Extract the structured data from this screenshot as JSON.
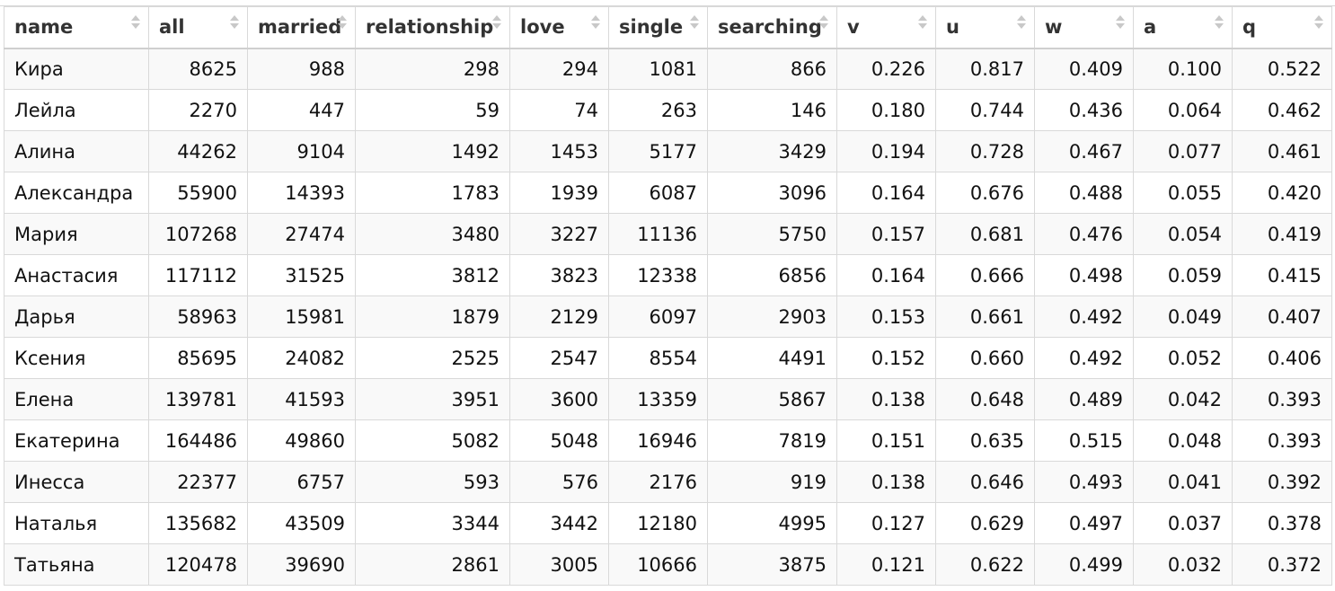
{
  "table": {
    "columns": [
      "name",
      "all",
      "married",
      "relationship",
      "love",
      "single",
      "searching",
      "v",
      "u",
      "w",
      "a",
      "q"
    ],
    "rows": [
      [
        "Кира",
        "8625",
        "988",
        "298",
        "294",
        "1081",
        "866",
        "0.226",
        "0.817",
        "0.409",
        "0.100",
        "0.522"
      ],
      [
        "Лейла",
        "2270",
        "447",
        "59",
        "74",
        "263",
        "146",
        "0.180",
        "0.744",
        "0.436",
        "0.064",
        "0.462"
      ],
      [
        "Алина",
        "44262",
        "9104",
        "1492",
        "1453",
        "5177",
        "3429",
        "0.194",
        "0.728",
        "0.467",
        "0.077",
        "0.461"
      ],
      [
        "Александра",
        "55900",
        "14393",
        "1783",
        "1939",
        "6087",
        "3096",
        "0.164",
        "0.676",
        "0.488",
        "0.055",
        "0.420"
      ],
      [
        "Мария",
        "107268",
        "27474",
        "3480",
        "3227",
        "11136",
        "5750",
        "0.157",
        "0.681",
        "0.476",
        "0.054",
        "0.419"
      ],
      [
        "Анастасия",
        "117112",
        "31525",
        "3812",
        "3823",
        "12338",
        "6856",
        "0.164",
        "0.666",
        "0.498",
        "0.059",
        "0.415"
      ],
      [
        "Дарья",
        "58963",
        "15981",
        "1879",
        "2129",
        "6097",
        "2903",
        "0.153",
        "0.661",
        "0.492",
        "0.049",
        "0.407"
      ],
      [
        "Ксения",
        "85695",
        "24082",
        "2525",
        "2547",
        "8554",
        "4491",
        "0.152",
        "0.660",
        "0.492",
        "0.052",
        "0.406"
      ],
      [
        "Елена",
        "139781",
        "41593",
        "3951",
        "3600",
        "13359",
        "5867",
        "0.138",
        "0.648",
        "0.489",
        "0.042",
        "0.393"
      ],
      [
        "Екатерина",
        "164486",
        "49860",
        "5082",
        "5048",
        "16946",
        "7819",
        "0.151",
        "0.635",
        "0.515",
        "0.048",
        "0.393"
      ],
      [
        "Инесса",
        "22377",
        "6757",
        "593",
        "576",
        "2176",
        "919",
        "0.138",
        "0.646",
        "0.493",
        "0.041",
        "0.392"
      ],
      [
        "Наталья",
        "135682",
        "43509",
        "3344",
        "3442",
        "12180",
        "4995",
        "0.127",
        "0.629",
        "0.497",
        "0.037",
        "0.378"
      ],
      [
        "Татьяна",
        "120478",
        "39690",
        "2861",
        "3005",
        "10666",
        "3875",
        "0.121",
        "0.622",
        "0.499",
        "0.032",
        "0.372"
      ]
    ],
    "colors": {
      "border": "#d9d9d9",
      "header_text": "#333333",
      "stripe": "#f9f9f9",
      "sort_icon": "#c8c8c8"
    },
    "icons": {
      "sort": "sort-updown-icon"
    }
  }
}
